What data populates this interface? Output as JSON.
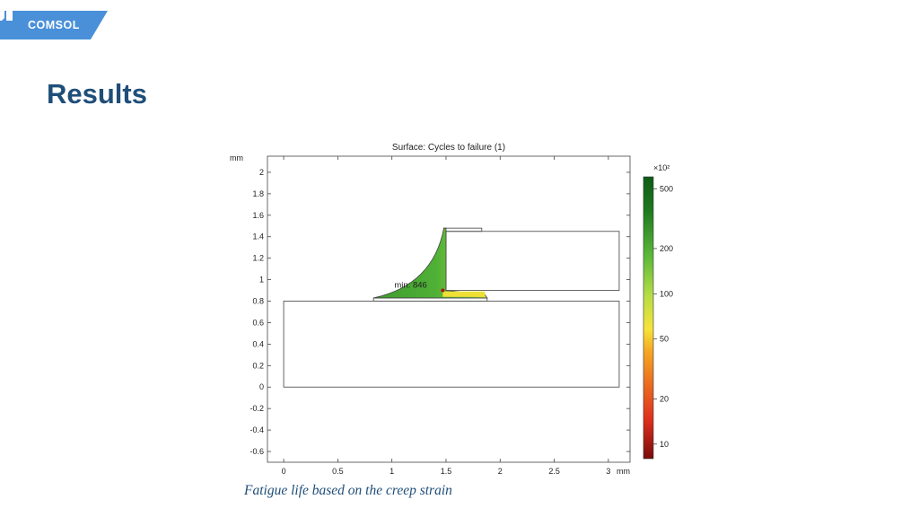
{
  "header": {
    "logo_text": "COMSOL",
    "brand_color": "#4a90d9",
    "title": "Results"
  },
  "caption": "Fatigue life based on the creep strain",
  "chart_data": {
    "type": "heatmap",
    "title": "Surface: Cycles to failure (1)",
    "x_unit": "mm",
    "y_unit": "mm",
    "xlim": [
      -0.15,
      3.2
    ],
    "ylim": [
      -0.7,
      2.15
    ],
    "x_ticks": [
      0,
      0.5,
      1,
      1.5,
      2,
      2.5,
      3
    ],
    "y_ticks": [
      2,
      1.8,
      1.6,
      1.4,
      1.2,
      1,
      0.8,
      0.6,
      0.4,
      0.2,
      0,
      -0.2,
      -0.4,
      -0.6
    ],
    "x_tick_labels": [
      "0",
      "0.5",
      "1",
      "1.5",
      "2",
      "2.5",
      "3"
    ],
    "y_tick_labels": [
      "2",
      "1.8",
      "1.6",
      "1.4",
      "1.2",
      "1",
      "0.8",
      "0.6",
      "0.4",
      "0.2",
      "0",
      "-0.2",
      "-0.4",
      "-0.6"
    ],
    "geometry": {
      "substrate": {
        "x": [
          0,
          3.1
        ],
        "y": [
          0,
          0.8
        ]
      },
      "component": {
        "x": [
          1.5,
          3.1
        ],
        "y": [
          0.9,
          1.45
        ]
      },
      "component_lip": {
        "x": [
          1.48,
          1.83
        ],
        "y": [
          1.45,
          1.48
        ]
      },
      "solder_pad": {
        "x": [
          0.83,
          1.88
        ],
        "y": [
          0.8,
          0.83
        ]
      }
    },
    "annotation": {
      "label": "min: 846",
      "x": 1.47,
      "y": 0.9
    },
    "colorbar": {
      "multiplier": "×10²",
      "scale": "log",
      "range": [
        8,
        600
      ],
      "ticks": [
        500,
        200,
        100,
        50,
        20,
        10
      ],
      "tick_labels": [
        "500",
        "200",
        "100",
        "50",
        "20",
        "10"
      ],
      "colors": [
        "#7a0a0a",
        "#e0301e",
        "#f5a623",
        "#f7e33a",
        "#b5dd45",
        "#5cb83a",
        "#1f7a1f",
        "#0e5c16"
      ]
    },
    "grid": false
  }
}
